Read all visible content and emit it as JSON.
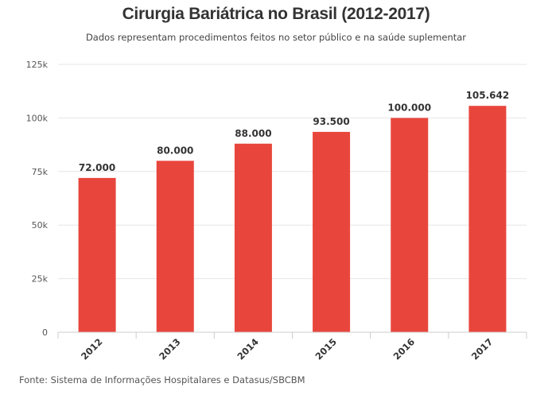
{
  "chart_data": {
    "type": "bar",
    "title": "Cirurgia Bariátrica no Brasil (2012-2017)",
    "subtitle": "Dados representam procedimentos feitos no setor público e na saúde suplementar",
    "source": "Fonte: Sistema de Informações Hospitalares e Datasus/SBCBM",
    "categories": [
      "2012",
      "2013",
      "2014",
      "2015",
      "2016",
      "2017"
    ],
    "values": [
      72000,
      80000,
      88000,
      93500,
      100000,
      105642
    ],
    "value_labels": [
      "72.000",
      "80.000",
      "88.000",
      "93.500",
      "100.000",
      "105.642"
    ],
    "ylim": [
      0,
      125000
    ],
    "yticks": [
      0,
      25000,
      50000,
      75000,
      100000,
      125000
    ],
    "ytick_labels": [
      "0",
      "25k",
      "50k",
      "75k",
      "100k",
      "125k"
    ],
    "xlabel": "",
    "ylabel": "",
    "grid": true,
    "bar_color": "#e8463c"
  }
}
